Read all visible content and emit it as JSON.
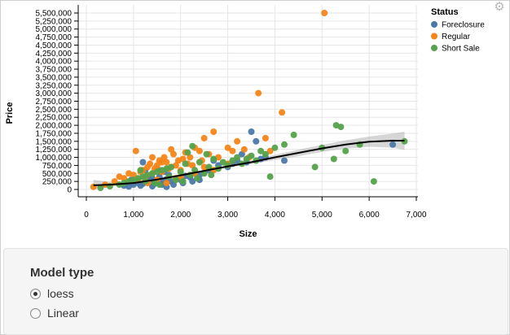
{
  "chart_data": {
    "type": "scatter",
    "title": "",
    "xlabel": "Size",
    "ylabel": "Price",
    "xlim": [
      0,
      7000
    ],
    "ylim": [
      0,
      5500000
    ],
    "x_ticks": [
      0,
      1000,
      2000,
      3000,
      4000,
      5000,
      6000,
      7000
    ],
    "x_tick_labels": [
      "0",
      "1,000",
      "2,000",
      "3,000",
      "4,000",
      "5,000",
      "6,000",
      "7,000"
    ],
    "y_ticks": [
      0,
      250000,
      500000,
      750000,
      1000000,
      1250000,
      1500000,
      1750000,
      2000000,
      2250000,
      2500000,
      2750000,
      3000000,
      3250000,
      3500000,
      3750000,
      4000000,
      4250000,
      4500000,
      4750000,
      5000000,
      5250000,
      5500000
    ],
    "y_tick_labels": [
      "0",
      "250,000",
      "500,000",
      "750,000",
      "1,000,000",
      "1,250,000",
      "1,500,000",
      "1,750,000",
      "2,000,000",
      "2,250,000",
      "2,500,000",
      "2,750,000",
      "3,000,000",
      "3,250,000",
      "3,500,000",
      "3,750,000",
      "4,000,000",
      "4,250,000",
      "4,500,000",
      "4,750,000",
      "5,000,000",
      "5,250,000",
      "5,500,000"
    ],
    "grid": true,
    "legend": {
      "title": "Status",
      "placement": "right"
    },
    "series": [
      {
        "name": "Foreclosure",
        "color": "#4c78a8",
        "points": [
          [
            800,
            120000
          ],
          [
            900,
            90000
          ],
          [
            1000,
            150000
          ],
          [
            1100,
            200000
          ],
          [
            1200,
            180000
          ],
          [
            1300,
            250000
          ],
          [
            1350,
            300000
          ],
          [
            1400,
            350000
          ],
          [
            1450,
            180000
          ],
          [
            1500,
            220000
          ],
          [
            1550,
            400000
          ],
          [
            1600,
            280000
          ],
          [
            1700,
            320000
          ],
          [
            1750,
            450000
          ],
          [
            1800,
            250000
          ],
          [
            1900,
            350000
          ],
          [
            2000,
            300000
          ],
          [
            2100,
            420000
          ],
          [
            2200,
            380000
          ],
          [
            2300,
            500000
          ],
          [
            2400,
            450000
          ],
          [
            2500,
            520000
          ],
          [
            1200,
            850000
          ],
          [
            1400,
            100000
          ],
          [
            1600,
            150000
          ],
          [
            2600,
            600000
          ],
          [
            2800,
            750000
          ],
          [
            3000,
            700000
          ],
          [
            3200,
            900000
          ],
          [
            3300,
            1100000
          ],
          [
            3500,
            1800000
          ],
          [
            3600,
            1500000
          ],
          [
            3700,
            950000
          ],
          [
            4200,
            900000
          ],
          [
            6500,
            1400000
          ],
          [
            950,
            300000
          ],
          [
            1150,
            120000
          ],
          [
            1250,
            600000
          ],
          [
            1650,
            550000
          ],
          [
            1850,
            150000
          ],
          [
            2050,
            200000
          ],
          [
            2250,
            250000
          ],
          [
            2700,
            900000
          ],
          [
            3100,
            800000
          ],
          [
            3400,
            850000
          ],
          [
            3800,
            1000000
          ],
          [
            1700,
            80000
          ],
          [
            1500,
            650000
          ],
          [
            2400,
            300000
          ]
        ]
      },
      {
        "name": "Regular",
        "color": "#f58518",
        "points": [
          [
            150,
            80000
          ],
          [
            400,
            150000
          ],
          [
            600,
            250000
          ],
          [
            700,
            400000
          ],
          [
            800,
            350000
          ],
          [
            900,
            500000
          ],
          [
            1000,
            450000
          ],
          [
            1050,
            1200000
          ],
          [
            1100,
            300000
          ],
          [
            1150,
            550000
          ],
          [
            1200,
            600000
          ],
          [
            1250,
            400000
          ],
          [
            1300,
            700000
          ],
          [
            1350,
            800000
          ],
          [
            1400,
            500000
          ],
          [
            1450,
            650000
          ],
          [
            1500,
            750000
          ],
          [
            1550,
            900000
          ],
          [
            1600,
            550000
          ],
          [
            1650,
            1000000
          ],
          [
            1700,
            850000
          ],
          [
            1750,
            650000
          ],
          [
            1800,
            700000
          ],
          [
            1850,
            1100000
          ],
          [
            1900,
            750000
          ],
          [
            1950,
            900000
          ],
          [
            2000,
            600000
          ],
          [
            2050,
            950000
          ],
          [
            2100,
            1150000
          ],
          [
            2150,
            800000
          ],
          [
            2200,
            1000000
          ],
          [
            2250,
            750000
          ],
          [
            2300,
            1300000
          ],
          [
            2400,
            1200000
          ],
          [
            2450,
            900000
          ],
          [
            2500,
            700000
          ],
          [
            2600,
            1100000
          ],
          [
            2700,
            600000
          ],
          [
            2800,
            1000000
          ],
          [
            3000,
            800000
          ],
          [
            3100,
            1200000
          ],
          [
            3200,
            1500000
          ],
          [
            3350,
            1250000
          ],
          [
            3450,
            1000000
          ],
          [
            3650,
            3000000
          ],
          [
            3800,
            1600000
          ],
          [
            3900,
            1200000
          ],
          [
            4150,
            2400000
          ],
          [
            5050,
            5500000
          ],
          [
            1300,
            200000
          ],
          [
            1500,
            300000
          ],
          [
            1700,
            200000
          ],
          [
            2000,
            400000
          ],
          [
            2300,
            500000
          ],
          [
            1900,
            350000
          ],
          [
            1600,
            850000
          ],
          [
            1400,
            1000000
          ],
          [
            1800,
            1250000
          ],
          [
            2500,
            1600000
          ],
          [
            2700,
            1800000
          ],
          [
            3000,
            1300000
          ]
        ]
      },
      {
        "name": "Short Sale",
        "color": "#54a24b",
        "points": [
          [
            300,
            50000
          ],
          [
            500,
            100000
          ],
          [
            700,
            150000
          ],
          [
            800,
            200000
          ],
          [
            900,
            250000
          ],
          [
            1000,
            300000
          ],
          [
            1100,
            350000
          ],
          [
            1200,
            400000
          ],
          [
            1300,
            450000
          ],
          [
            1400,
            500000
          ],
          [
            1500,
            550000
          ],
          [
            1600,
            600000
          ],
          [
            1700,
            650000
          ],
          [
            1800,
            700000
          ],
          [
            1900,
            300000
          ],
          [
            2000,
            550000
          ],
          [
            2100,
            800000
          ],
          [
            2200,
            450000
          ],
          [
            2300,
            600000
          ],
          [
            2400,
            850000
          ],
          [
            2500,
            500000
          ],
          [
            2600,
            700000
          ],
          [
            2700,
            950000
          ],
          [
            2800,
            650000
          ],
          [
            2900,
            850000
          ],
          [
            3000,
            750000
          ],
          [
            3100,
            900000
          ],
          [
            3200,
            1000000
          ],
          [
            3300,
            800000
          ],
          [
            3400,
            950000
          ],
          [
            3500,
            1050000
          ],
          [
            3600,
            900000
          ],
          [
            3700,
            1200000
          ],
          [
            3800,
            1100000
          ],
          [
            3900,
            400000
          ],
          [
            4000,
            1300000
          ],
          [
            4200,
            1400000
          ],
          [
            4400,
            1700000
          ],
          [
            4850,
            700000
          ],
          [
            5000,
            1300000
          ],
          [
            5300,
            2000000
          ],
          [
            5400,
            1950000
          ],
          [
            5500,
            1200000
          ],
          [
            5800,
            1400000
          ],
          [
            6100,
            250000
          ],
          [
            6750,
            1500000
          ],
          [
            1250,
            250000
          ],
          [
            1550,
            150000
          ],
          [
            1750,
            400000
          ],
          [
            2050,
            250000
          ],
          [
            2350,
            350000
          ],
          [
            2650,
            450000
          ],
          [
            1150,
            600000
          ],
          [
            1450,
            200000
          ],
          [
            2150,
            1150000
          ],
          [
            2550,
            1100000
          ],
          [
            2250,
            1350000
          ],
          [
            5250,
            950000
          ]
        ]
      }
    ],
    "trend_line": {
      "name": "loess",
      "x": [
        150,
        500,
        1000,
        1500,
        2000,
        2500,
        3000,
        3500,
        4000,
        4500,
        5000,
        5500,
        6000,
        6500,
        6750
      ],
      "y": [
        130000,
        150000,
        200000,
        310000,
        440000,
        580000,
        720000,
        850000,
        1000000,
        1140000,
        1280000,
        1400000,
        1490000,
        1520000,
        1520000
      ],
      "band_low": [
        0,
        80000,
        160000,
        280000,
        410000,
        550000,
        680000,
        790000,
        920000,
        1040000,
        1170000,
        1270000,
        1330000,
        1300000,
        1240000
      ],
      "band_high": [
        300000,
        230000,
        240000,
        340000,
        470000,
        610000,
        760000,
        910000,
        1080000,
        1240000,
        1390000,
        1530000,
        1650000,
        1740000,
        1800000
      ]
    }
  },
  "legend": {
    "title": "Status",
    "items": [
      {
        "label": "Foreclosure",
        "color": "#4c78a8"
      },
      {
        "label": "Regular",
        "color": "#f58518"
      },
      {
        "label": "Short Sale",
        "color": "#54a24b"
      }
    ]
  },
  "settings_icon": "gear-icon",
  "model_panel": {
    "title": "Model type",
    "options": [
      {
        "label": "loess",
        "checked": true
      },
      {
        "label": "Linear",
        "checked": false
      }
    ]
  }
}
